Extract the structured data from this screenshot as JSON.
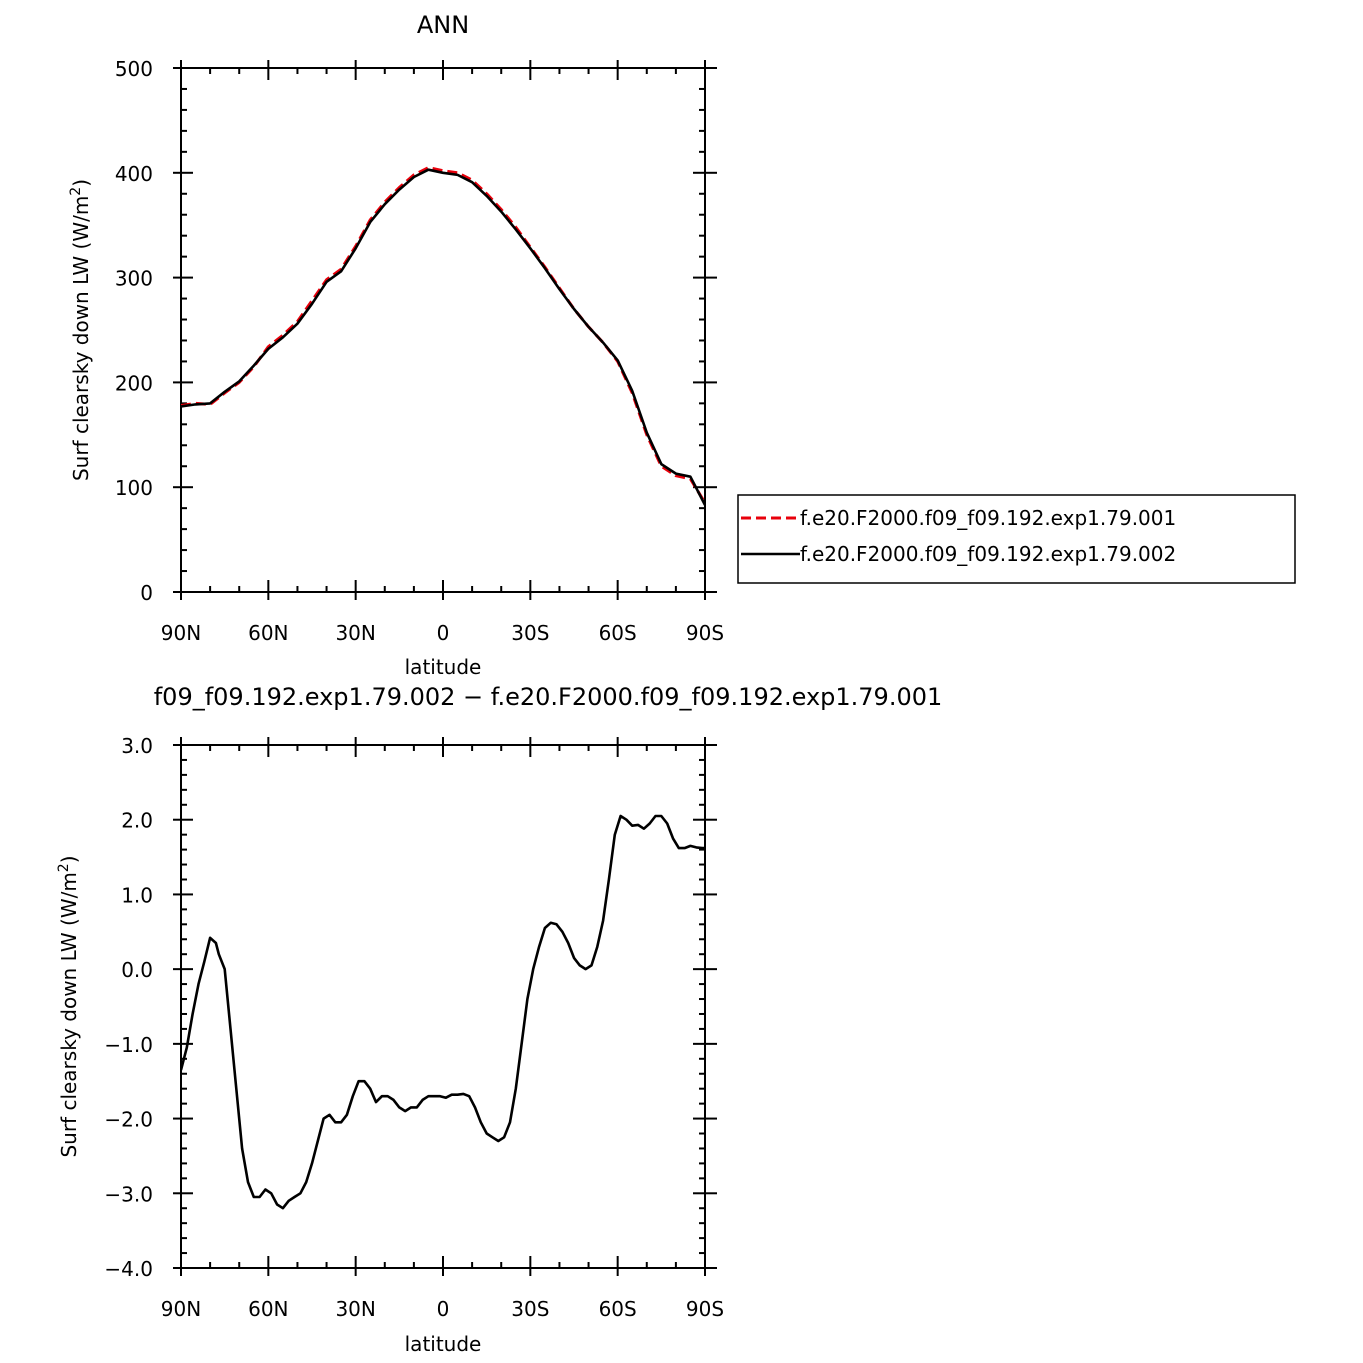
{
  "chart_data": [
    {
      "type": "line",
      "title": "ANN",
      "xlabel": "latitude",
      "ylabel": "Surf clearsky down LW (W/m",
      "ylabel_sup": "2",
      "ylabel_end": ")",
      "xlim": [
        90,
        -90
      ],
      "ylim": [
        0,
        500
      ],
      "x_ticks": [
        90,
        60,
        30,
        0,
        -30,
        -60,
        -90
      ],
      "x_tick_labels": [
        "90N",
        "60N",
        "30N",
        "0",
        "30S",
        "60S",
        "90S"
      ],
      "y_ticks": [
        0,
        100,
        200,
        300,
        400,
        500
      ],
      "y_tick_labels": [
        "0",
        "100",
        "200",
        "300",
        "400",
        "500"
      ],
      "legend": "right",
      "series": [
        {
          "name": "f.e20.F2000.f09_f09.192.exp1.79.001",
          "color": "#e8000b",
          "dash": "dashed",
          "x": [
            90,
            85,
            80,
            75,
            70,
            65,
            60,
            55,
            50,
            45,
            40,
            35,
            30,
            25,
            20,
            15,
            10,
            5,
            0,
            -5,
            -10,
            -15,
            -20,
            -25,
            -30,
            -35,
            -40,
            -45,
            -50,
            -55,
            -60,
            -65,
            -70,
            -75,
            -80,
            -85,
            -90
          ],
          "y": [
            178,
            180,
            179,
            190,
            200,
            215,
            234,
            245,
            258,
            278,
            298,
            308,
            330,
            355,
            372,
            386,
            398,
            405,
            402,
            400,
            393,
            380,
            365,
            348,
            329,
            310,
            290,
            270,
            253,
            238,
            220,
            190,
            150,
            120,
            111,
            108,
            85
          ]
        },
        {
          "name": "f.e20.F2000.f09_f09.192.exp1.79.002",
          "color": "#000000",
          "dash": "solid",
          "x": [
            90,
            85,
            80,
            75,
            70,
            65,
            60,
            55,
            50,
            45,
            40,
            35,
            30,
            25,
            20,
            15,
            10,
            5,
            0,
            -5,
            -10,
            -15,
            -20,
            -25,
            -30,
            -35,
            -40,
            -45,
            -50,
            -55,
            -60,
            -65,
            -70,
            -75,
            -80,
            -85,
            -90
          ],
          "y": [
            177,
            179,
            180,
            191,
            201,
            216,
            232,
            243,
            256,
            275,
            296,
            306,
            328,
            353,
            370,
            384,
            396,
            403,
            400,
            398,
            391,
            378,
            363,
            346,
            328,
            309,
            289,
            270,
            253,
            238,
            221,
            192,
            152,
            122,
            113,
            110,
            83
          ]
        }
      ]
    },
    {
      "type": "line",
      "title": "f09_f09.192.exp1.79.002 − f.e20.F2000.f09_f09.192.exp1.79.001",
      "xlabel": "latitude",
      "ylabel": "Surf clearsky down LW (W/m",
      "ylabel_sup": "2",
      "ylabel_end": ")",
      "xlim": [
        90,
        -90
      ],
      "ylim": [
        -4.0,
        3.0
      ],
      "x_ticks": [
        90,
        60,
        30,
        0,
        -30,
        -60,
        -90
      ],
      "x_tick_labels": [
        "90N",
        "60N",
        "30N",
        "0",
        "30S",
        "60S",
        "90S"
      ],
      "y_ticks": [
        -4.0,
        -3.0,
        -2.0,
        -1.0,
        0.0,
        1.0,
        2.0,
        3.0
      ],
      "y_tick_labels": [
        "−4.0",
        "−3.0",
        "−2.0",
        "−1.0",
        "0.0",
        "1.0",
        "2.0",
        "3.0"
      ],
      "series": [
        {
          "color": "#000000",
          "dash": "solid",
          "x": [
            90,
            88,
            86,
            84,
            82,
            80,
            78,
            77,
            75,
            73,
            71,
            69,
            67,
            65,
            63,
            61,
            59,
            57,
            55,
            53,
            51,
            49,
            47,
            45,
            43,
            41,
            39,
            37,
            35,
            33,
            31,
            29,
            27,
            25,
            23,
            21,
            19,
            17,
            15,
            13,
            11,
            9,
            7,
            5,
            3,
            1,
            -1,
            -3,
            -5,
            -7,
            -9,
            -11,
            -13,
            -15,
            -17,
            -19,
            -21,
            -23,
            -25,
            -27,
            -29,
            -31,
            -33,
            -35,
            -37,
            -39,
            -41,
            -43,
            -45,
            -47,
            -49,
            -51,
            -53,
            -55,
            -57,
            -59,
            -61,
            -63,
            -65,
            -67,
            -69,
            -71,
            -73,
            -75,
            -77,
            -79,
            -81,
            -83,
            -85,
            -87,
            -89,
            -90
          ],
          "y": [
            -1.35,
            -1.05,
            -0.6,
            -0.2,
            0.1,
            0.42,
            0.35,
            0.2,
            0.0,
            -0.8,
            -1.6,
            -2.4,
            -2.85,
            -3.05,
            -3.05,
            -2.95,
            -3.0,
            -3.15,
            -3.2,
            -3.1,
            -3.05,
            -3.0,
            -2.85,
            -2.6,
            -2.3,
            -2.0,
            -1.95,
            -2.05,
            -2.05,
            -1.95,
            -1.7,
            -1.5,
            -1.5,
            -1.6,
            -1.78,
            -1.7,
            -1.7,
            -1.75,
            -1.85,
            -1.9,
            -1.85,
            -1.85,
            -1.75,
            -1.7,
            -1.7,
            -1.7,
            -1.72,
            -1.68,
            -1.68,
            -1.67,
            -1.7,
            -1.85,
            -2.05,
            -2.2,
            -2.25,
            -2.3,
            -2.25,
            -2.05,
            -1.6,
            -1.0,
            -0.4,
            0.0,
            0.3,
            0.55,
            0.62,
            0.6,
            0.5,
            0.35,
            0.15,
            0.05,
            0.0,
            0.05,
            0.3,
            0.65,
            1.2,
            1.8,
            2.05,
            2.0,
            1.92,
            1.93,
            1.88,
            1.95,
            2.05,
            2.05,
            1.95,
            1.75,
            1.62,
            1.62,
            1.65,
            1.63,
            1.62,
            1.62
          ]
        }
      ]
    }
  ]
}
